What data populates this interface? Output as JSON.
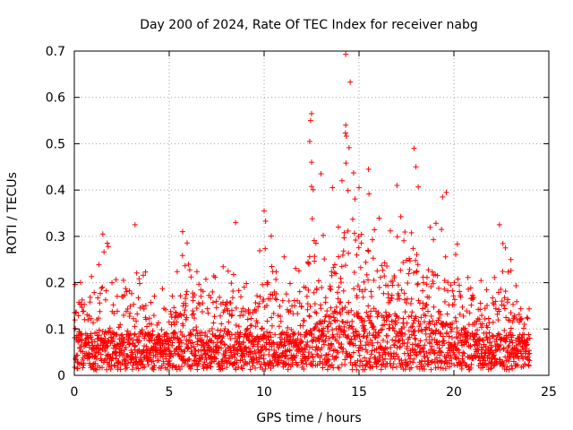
{
  "chart_data": {
    "type": "scatter",
    "title": "Day 200 of 2024, Rate Of TEC Index for receiver nabg",
    "xlabel": "GPS time / hours",
    "ylabel": "ROTI / TECUs",
    "xlim": [
      0,
      25
    ],
    "ylim": [
      0,
      0.7
    ],
    "xticks": [
      0,
      5,
      10,
      15,
      20,
      25
    ],
    "yticks": [
      0,
      0.1,
      0.2,
      0.3,
      0.4,
      0.5,
      0.6,
      0.7
    ],
    "xtick_labels": [
      "0",
      "5",
      "10",
      "15",
      "20",
      "25"
    ],
    "ytick_labels": [
      "0",
      "0.1",
      "0.2",
      "0.3",
      "0.4",
      "0.5",
      "0.6",
      "0.7"
    ],
    "grid": true,
    "marker": "plus",
    "marker_color": "#ff0000",
    "time_range_hours": [
      0,
      24
    ],
    "envelope": {
      "x": [
        0,
        0.5,
        1,
        1.5,
        2,
        2.5,
        3,
        3.5,
        4,
        4.5,
        5,
        5.5,
        6,
        6.5,
        7,
        7.5,
        8,
        8.5,
        9,
        9.5,
        10,
        10.5,
        11,
        11.5,
        12,
        12.5,
        13,
        13.5,
        14,
        14.5,
        15,
        15.5,
        16,
        16.5,
        17,
        17.5,
        18,
        18.5,
        19,
        19.5,
        20,
        20.5,
        21,
        21.5,
        22,
        22.5,
        23,
        23.5,
        24
      ],
      "baseline": [
        0.06,
        0.06,
        0.06,
        0.06,
        0.06,
        0.06,
        0.06,
        0.06,
        0.06,
        0.06,
        0.06,
        0.06,
        0.06,
        0.06,
        0.06,
        0.06,
        0.06,
        0.06,
        0.06,
        0.06,
        0.06,
        0.06,
        0.06,
        0.06,
        0.06,
        0.07,
        0.08,
        0.09,
        0.1,
        0.1,
        0.09,
        0.09,
        0.09,
        0.09,
        0.09,
        0.09,
        0.09,
        0.08,
        0.08,
        0.08,
        0.07,
        0.07,
        0.06,
        0.06,
        0.06,
        0.06,
        0.06,
        0.06,
        0.06
      ],
      "peak": [
        0.22,
        0.26,
        0.26,
        0.31,
        0.29,
        0.26,
        0.33,
        0.25,
        0.23,
        0.22,
        0.2,
        0.25,
        0.31,
        0.25,
        0.27,
        0.26,
        0.27,
        0.33,
        0.26,
        0.25,
        0.36,
        0.31,
        0.28,
        0.26,
        0.24,
        0.57,
        0.33,
        0.36,
        0.43,
        0.69,
        0.37,
        0.45,
        0.38,
        0.39,
        0.36,
        0.41,
        0.49,
        0.36,
        0.35,
        0.39,
        0.33,
        0.26,
        0.22,
        0.22,
        0.23,
        0.32,
        0.25,
        0.23,
        0.19
      ]
    },
    "notable_points": [
      {
        "x": 14.3,
        "y": 0.693
      },
      {
        "x": 14.3,
        "y": 0.54
      },
      {
        "x": 12.5,
        "y": 0.565
      },
      {
        "x": 12.45,
        "y": 0.55
      },
      {
        "x": 12.4,
        "y": 0.505
      },
      {
        "x": 12.5,
        "y": 0.46
      },
      {
        "x": 13.0,
        "y": 0.435
      },
      {
        "x": 13.6,
        "y": 0.405
      },
      {
        "x": 14.1,
        "y": 0.42
      },
      {
        "x": 15.0,
        "y": 0.405
      },
      {
        "x": 15.5,
        "y": 0.445
      },
      {
        "x": 17.0,
        "y": 0.41
      },
      {
        "x": 17.9,
        "y": 0.49
      },
      {
        "x": 18.0,
        "y": 0.45
      },
      {
        "x": 19.6,
        "y": 0.395
      },
      {
        "x": 19.4,
        "y": 0.385
      },
      {
        "x": 10.0,
        "y": 0.355
      },
      {
        "x": 8.5,
        "y": 0.33
      },
      {
        "x": 3.2,
        "y": 0.325
      },
      {
        "x": 5.7,
        "y": 0.31
      },
      {
        "x": 1.5,
        "y": 0.305
      },
      {
        "x": 22.4,
        "y": 0.325
      },
      {
        "x": 23.0,
        "y": 0.25
      }
    ]
  }
}
